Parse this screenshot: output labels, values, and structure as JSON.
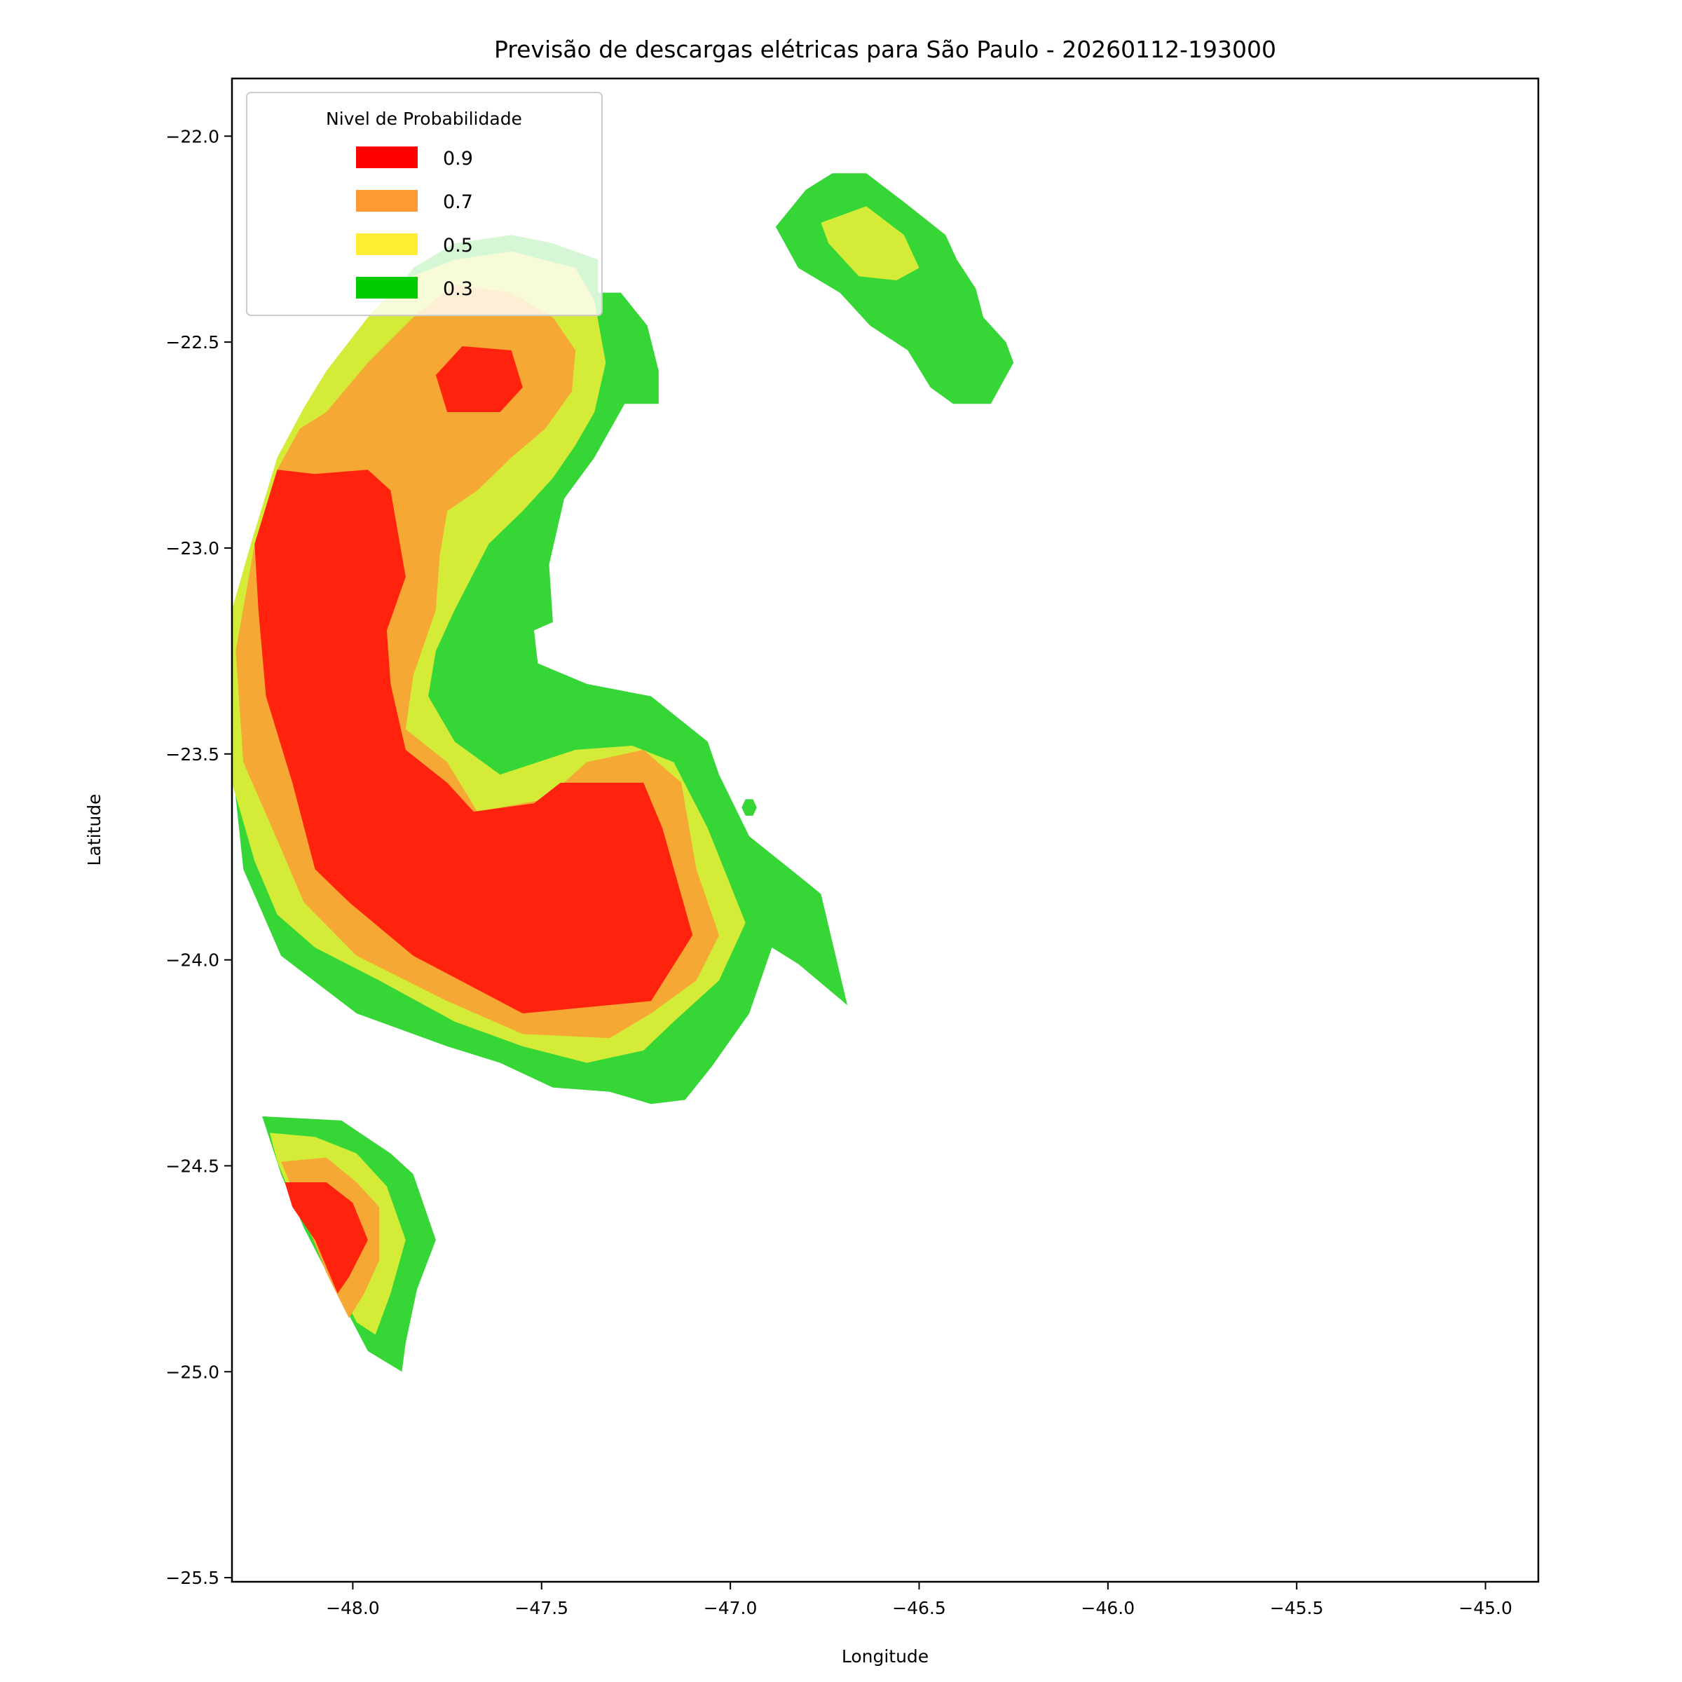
{
  "chart_data": {
    "type": "contour",
    "title": "Previsão de descargas elétricas para São Paulo - 20260112-193000",
    "xlabel": "Longitude",
    "ylabel": "Latitude",
    "xlim": [
      -48.32,
      -44.86
    ],
    "ylim": [
      -25.51,
      -21.86
    ],
    "xticks": [
      -48.0,
      -47.5,
      -47.0,
      -46.5,
      -46.0,
      -45.5,
      -45.0
    ],
    "xtick_labels": [
      "−48.0",
      "−47.5",
      "−47.0",
      "−46.5",
      "−46.0",
      "−45.5",
      "−45.0"
    ],
    "yticks": [
      -22.0,
      -22.5,
      -23.0,
      -23.5,
      -24.0,
      -24.5,
      -25.0,
      -25.5
    ],
    "ytick_labels": [
      "−22.0",
      "−22.5",
      "−23.0",
      "−23.5",
      "−24.0",
      "−24.5",
      "−25.0",
      "−25.5"
    ],
    "grid": false,
    "legend": {
      "title": "Nivel de Probabilidade",
      "placement": "upper-left",
      "entries": [
        {
          "label": "0.9",
          "color": "#ff0000"
        },
        {
          "label": "0.7",
          "color": "#ff9933"
        },
        {
          "label": "0.5",
          "color": "#ffee33"
        },
        {
          "label": "0.3",
          "color": "#00cc00"
        }
      ]
    },
    "fill_colors": {
      "0.3": "#36d636",
      "0.5": "#d4ec38",
      "0.7": "#f5a833",
      "0.9": "#ff230d"
    },
    "regions": [
      {
        "level": 0.3,
        "polygon": [
          [
            -48.32,
            -23.23
          ],
          [
            -48.26,
            -22.99
          ],
          [
            -48.19,
            -22.78
          ],
          [
            -48.12,
            -22.65
          ],
          [
            -48.03,
            -22.53
          ],
          [
            -47.94,
            -22.44
          ],
          [
            -47.84,
            -22.32
          ],
          [
            -47.73,
            -22.26
          ],
          [
            -47.58,
            -22.24
          ],
          [
            -47.47,
            -22.26
          ],
          [
            -47.35,
            -22.3
          ],
          [
            -47.35,
            -22.38
          ],
          [
            -47.29,
            -22.38
          ],
          [
            -47.22,
            -22.46
          ],
          [
            -47.19,
            -22.57
          ],
          [
            -47.19,
            -22.65
          ],
          [
            -47.28,
            -22.65
          ],
          [
            -47.36,
            -22.78
          ],
          [
            -47.44,
            -22.88
          ],
          [
            -47.48,
            -23.04
          ],
          [
            -47.47,
            -23.18
          ],
          [
            -47.52,
            -23.2
          ],
          [
            -47.51,
            -23.28
          ],
          [
            -47.38,
            -23.33
          ],
          [
            -47.21,
            -23.36
          ],
          [
            -47.06,
            -23.47
          ],
          [
            -47.03,
            -23.55
          ],
          [
            -46.95,
            -23.7
          ],
          [
            -46.8,
            -23.81
          ],
          [
            -46.76,
            -23.84
          ],
          [
            -46.69,
            -24.11
          ],
          [
            -46.82,
            -24.01
          ],
          [
            -46.89,
            -23.97
          ],
          [
            -46.95,
            -24.13
          ],
          [
            -47.05,
            -24.26
          ],
          [
            -47.12,
            -24.34
          ],
          [
            -47.21,
            -24.35
          ],
          [
            -47.32,
            -24.32
          ],
          [
            -47.47,
            -24.31
          ],
          [
            -47.61,
            -24.25
          ],
          [
            -47.75,
            -24.21
          ],
          [
            -47.99,
            -24.13
          ],
          [
            -48.19,
            -23.99
          ],
          [
            -48.29,
            -23.78
          ],
          [
            -48.32,
            -23.52
          ]
        ]
      },
      {
        "level": 0.3,
        "polygon": [
          [
            -46.88,
            -22.22
          ],
          [
            -46.8,
            -22.13
          ],
          [
            -46.73,
            -22.09
          ],
          [
            -46.64,
            -22.09
          ],
          [
            -46.54,
            -22.16
          ],
          [
            -46.43,
            -22.24
          ],
          [
            -46.4,
            -22.3
          ],
          [
            -46.35,
            -22.37
          ],
          [
            -46.33,
            -22.44
          ],
          [
            -46.27,
            -22.5
          ],
          [
            -46.25,
            -22.55
          ],
          [
            -46.31,
            -22.65
          ],
          [
            -46.41,
            -22.65
          ],
          [
            -46.47,
            -22.61
          ],
          [
            -46.53,
            -22.52
          ],
          [
            -46.63,
            -22.46
          ],
          [
            -46.71,
            -22.38
          ],
          [
            -46.82,
            -22.32
          ]
        ]
      },
      {
        "level": 0.3,
        "polygon": [
          [
            -48.24,
            -24.38
          ],
          [
            -48.03,
            -24.39
          ],
          [
            -47.9,
            -24.47
          ],
          [
            -47.84,
            -24.52
          ],
          [
            -47.78,
            -24.68
          ],
          [
            -47.83,
            -24.8
          ],
          [
            -47.86,
            -24.93
          ],
          [
            -47.87,
            -25.0
          ],
          [
            -47.96,
            -24.95
          ],
          [
            -48.04,
            -24.81
          ],
          [
            -48.13,
            -24.65
          ],
          [
            -48.19,
            -24.52
          ]
        ]
      },
      {
        "level": 0.3,
        "polygon": [
          [
            -46.96,
            -23.61
          ],
          [
            -46.94,
            -23.61
          ],
          [
            -46.93,
            -23.63
          ],
          [
            -46.94,
            -23.65
          ],
          [
            -46.96,
            -23.65
          ],
          [
            -46.97,
            -23.63
          ]
        ]
      },
      {
        "level": 0.5,
        "polygon": [
          [
            -48.32,
            -23.15
          ],
          [
            -48.27,
            -22.99
          ],
          [
            -48.2,
            -22.78
          ],
          [
            -48.13,
            -22.66
          ],
          [
            -48.07,
            -22.57
          ],
          [
            -47.96,
            -22.44
          ],
          [
            -47.87,
            -22.35
          ],
          [
            -47.73,
            -22.3
          ],
          [
            -47.58,
            -22.28
          ],
          [
            -47.41,
            -22.32
          ],
          [
            -47.36,
            -22.4
          ],
          [
            -47.33,
            -22.55
          ],
          [
            -47.36,
            -22.67
          ],
          [
            -47.41,
            -22.75
          ],
          [
            -47.47,
            -22.83
          ],
          [
            -47.55,
            -22.91
          ],
          [
            -47.64,
            -22.99
          ],
          [
            -47.73,
            -23.15
          ],
          [
            -47.78,
            -23.25
          ],
          [
            -47.8,
            -23.36
          ],
          [
            -47.73,
            -23.47
          ],
          [
            -47.61,
            -23.55
          ],
          [
            -47.41,
            -23.49
          ],
          [
            -47.26,
            -23.48
          ],
          [
            -47.15,
            -23.52
          ],
          [
            -47.06,
            -23.68
          ],
          [
            -46.96,
            -23.91
          ],
          [
            -47.03,
            -24.05
          ],
          [
            -47.15,
            -24.15
          ],
          [
            -47.23,
            -24.22
          ],
          [
            -47.38,
            -24.25
          ],
          [
            -47.55,
            -24.21
          ],
          [
            -47.73,
            -24.15
          ],
          [
            -47.93,
            -24.05
          ],
          [
            -48.1,
            -23.97
          ],
          [
            -48.2,
            -23.89
          ],
          [
            -48.26,
            -23.76
          ],
          [
            -48.32,
            -23.57
          ]
        ]
      },
      {
        "level": 0.5,
        "polygon": [
          [
            -46.76,
            -22.21
          ],
          [
            -46.64,
            -22.17
          ],
          [
            -46.54,
            -22.24
          ],
          [
            -46.5,
            -22.32
          ],
          [
            -46.56,
            -22.35
          ],
          [
            -46.66,
            -22.34
          ],
          [
            -46.74,
            -22.26
          ]
        ]
      },
      {
        "level": 0.5,
        "polygon": [
          [
            -48.22,
            -24.42
          ],
          [
            -48.1,
            -24.43
          ],
          [
            -47.99,
            -24.47
          ],
          [
            -47.91,
            -24.55
          ],
          [
            -47.86,
            -24.68
          ],
          [
            -47.9,
            -24.81
          ],
          [
            -47.94,
            -24.91
          ],
          [
            -47.99,
            -24.88
          ],
          [
            -48.07,
            -24.73
          ],
          [
            -48.16,
            -24.58
          ],
          [
            -48.2,
            -24.49
          ]
        ]
      },
      {
        "level": 0.7,
        "polygon": [
          [
            -48.31,
            -23.25
          ],
          [
            -48.26,
            -22.99
          ],
          [
            -48.2,
            -22.81
          ],
          [
            -48.14,
            -22.71
          ],
          [
            -48.07,
            -22.67
          ],
          [
            -47.96,
            -22.55
          ],
          [
            -47.84,
            -22.44
          ],
          [
            -47.73,
            -22.36
          ],
          [
            -47.58,
            -22.38
          ],
          [
            -47.47,
            -22.44
          ],
          [
            -47.41,
            -22.52
          ],
          [
            -47.42,
            -22.62
          ],
          [
            -47.49,
            -22.71
          ],
          [
            -47.58,
            -22.78
          ],
          [
            -47.67,
            -22.86
          ],
          [
            -47.75,
            -22.91
          ],
          [
            -47.77,
            -23.02
          ],
          [
            -47.78,
            -23.15
          ],
          [
            -47.84,
            -23.31
          ],
          [
            -47.86,
            -23.44
          ],
          [
            -47.75,
            -23.52
          ],
          [
            -47.67,
            -23.64
          ],
          [
            -47.49,
            -23.61
          ],
          [
            -47.38,
            -23.52
          ],
          [
            -47.23,
            -23.49
          ],
          [
            -47.13,
            -23.57
          ],
          [
            -47.09,
            -23.78
          ],
          [
            -47.03,
            -23.94
          ],
          [
            -47.09,
            -24.05
          ],
          [
            -47.21,
            -24.13
          ],
          [
            -47.32,
            -24.19
          ],
          [
            -47.55,
            -24.18
          ],
          [
            -47.75,
            -24.1
          ],
          [
            -47.99,
            -23.99
          ],
          [
            -48.13,
            -23.86
          ],
          [
            -48.19,
            -23.73
          ],
          [
            -48.29,
            -23.52
          ]
        ]
      },
      {
        "level": 0.7,
        "polygon": [
          [
            -48.19,
            -24.49
          ],
          [
            -48.07,
            -24.48
          ],
          [
            -47.99,
            -24.54
          ],
          [
            -47.93,
            -24.6
          ],
          [
            -47.93,
            -24.73
          ],
          [
            -47.97,
            -24.81
          ],
          [
            -48.01,
            -24.87
          ],
          [
            -48.07,
            -24.76
          ],
          [
            -48.14,
            -24.6
          ]
        ]
      },
      {
        "level": 0.9,
        "polygon": [
          [
            -48.26,
            -22.99
          ],
          [
            -48.2,
            -22.81
          ],
          [
            -48.1,
            -22.82
          ],
          [
            -47.96,
            -22.81
          ],
          [
            -47.9,
            -22.86
          ],
          [
            -47.86,
            -23.07
          ],
          [
            -47.91,
            -23.2
          ],
          [
            -47.9,
            -23.33
          ],
          [
            -47.86,
            -23.49
          ],
          [
            -47.75,
            -23.57
          ],
          [
            -47.68,
            -23.64
          ],
          [
            -47.52,
            -23.62
          ],
          [
            -47.45,
            -23.57
          ],
          [
            -47.23,
            -23.57
          ],
          [
            -47.18,
            -23.68
          ],
          [
            -47.1,
            -23.94
          ],
          [
            -47.21,
            -24.1
          ],
          [
            -47.55,
            -24.13
          ],
          [
            -47.84,
            -23.99
          ],
          [
            -48.01,
            -23.86
          ],
          [
            -48.1,
            -23.78
          ],
          [
            -48.16,
            -23.57
          ],
          [
            -48.23,
            -23.36
          ],
          [
            -48.25,
            -23.15
          ]
        ]
      },
      {
        "level": 0.9,
        "polygon": [
          [
            -47.78,
            -22.58
          ],
          [
            -47.71,
            -22.51
          ],
          [
            -47.58,
            -22.52
          ],
          [
            -47.55,
            -22.61
          ],
          [
            -47.61,
            -22.67
          ],
          [
            -47.75,
            -22.67
          ]
        ]
      },
      {
        "level": 0.9,
        "polygon": [
          [
            -48.18,
            -24.54
          ],
          [
            -48.07,
            -24.54
          ],
          [
            -48.0,
            -24.59
          ],
          [
            -47.96,
            -24.68
          ],
          [
            -48.01,
            -24.77
          ],
          [
            -48.04,
            -24.81
          ],
          [
            -48.1,
            -24.68
          ],
          [
            -48.16,
            -24.6
          ]
        ]
      }
    ]
  }
}
